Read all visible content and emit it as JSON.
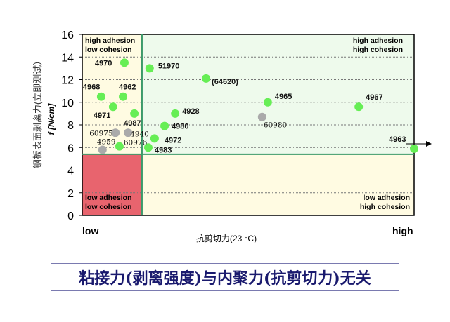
{
  "chart_data": {
    "type": "scatter",
    "title": "",
    "ylabel": "钢板表面剥离力(立即测试）",
    "yunit": "f [N/cm]",
    "xlabel": "抗剪切力(23 °C)",
    "x_tick_labels": [
      "low",
      "high"
    ],
    "xlim": [
      0,
      100
    ],
    "ylim": [
      0,
      16
    ],
    "yticks": [
      0,
      2,
      4,
      6,
      8,
      10,
      12,
      14,
      16
    ],
    "grid": true,
    "thresholds": {
      "x": 18,
      "y": 5.4
    },
    "quadrants": {
      "top_left": [
        "high adhesion",
        "low  cohesion"
      ],
      "top_right": [
        "high adhesion",
        "high cohesion"
      ],
      "bottom_left": [
        "low  adhesion",
        "low  cohesion"
      ],
      "bottom_right": [
        "low    adhesion",
        "high  cohesion"
      ]
    },
    "colors": {
      "green": "#66ee55",
      "grey": "#aaaaaa",
      "q_yellow": "#fffbe2",
      "q_green": "#eefaec",
      "q_red": "#e8646e",
      "line": "#3c9a6a"
    },
    "points": [
      {
        "label": "4970",
        "x": 12.7,
        "y": 13.5,
        "c": "green"
      },
      {
        "label": "51970",
        "x": 20.3,
        "y": 13.0,
        "c": "green"
      },
      {
        "label": "(64620)",
        "x": 37.3,
        "y": 12.1,
        "c": "green"
      },
      {
        "label": "4968",
        "x": 5.7,
        "y": 10.5,
        "c": "green"
      },
      {
        "label": "4962",
        "x": 12.3,
        "y": 10.5,
        "c": "green"
      },
      {
        "label": "4971",
        "x": 9.3,
        "y": 9.6,
        "c": "green"
      },
      {
        "label": "4987",
        "x": 15.7,
        "y": 9.0,
        "c": "green"
      },
      {
        "label": "4928",
        "x": 28.0,
        "y": 9.0,
        "c": "green"
      },
      {
        "label": "4980",
        "x": 24.8,
        "y": 7.9,
        "c": "green"
      },
      {
        "label": "4965",
        "x": 55.9,
        "y": 10.0,
        "c": "green"
      },
      {
        "label": "4967",
        "x": 83.3,
        "y": 9.6,
        "c": "green"
      },
      {
        "label": "60980",
        "x": 54.2,
        "y": 8.7,
        "c": "grey"
      },
      {
        "label": "60975",
        "x": 10.0,
        "y": 7.3,
        "c": "grey"
      },
      {
        "label": "4940",
        "x": 13.8,
        "y": 7.3,
        "c": "grey"
      },
      {
        "label": "4972",
        "x": 21.8,
        "y": 6.8,
        "c": "green"
      },
      {
        "label": "4983",
        "x": 19.9,
        "y": 6.0,
        "c": "green"
      },
      {
        "label": "60976",
        "x": 11.2,
        "y": 6.1,
        "c": "green"
      },
      {
        "label": "4959",
        "x": 6.1,
        "y": 5.8,
        "c": "grey"
      },
      {
        "label": "4963",
        "x": 100,
        "y": 5.9,
        "c": "green"
      }
    ]
  },
  "banner": "粘接力(剥离强度)与内聚力(抗剪切力)无关"
}
